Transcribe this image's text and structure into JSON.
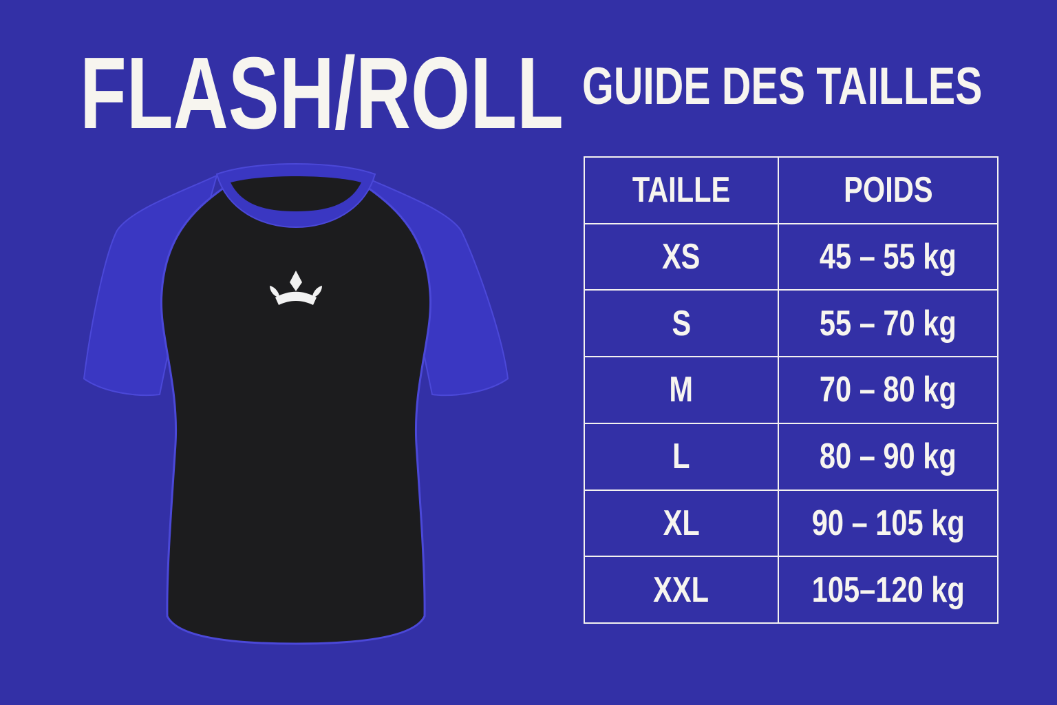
{
  "brand": "FLASH/ROLL",
  "title": "GUIDE DES TAILLES",
  "colors": {
    "background": "#3330a6",
    "sleeve": "#3a37c2",
    "body": "#1c1c1e",
    "text": "#f7f5ef"
  },
  "shirt": {
    "logo_icon": "crown-icon"
  },
  "table": {
    "headers": [
      "TAILLE",
      "POIDS"
    ],
    "rows": [
      {
        "size": "XS",
        "weight": "45 – 55 kg"
      },
      {
        "size": "S",
        "weight": "55 – 70 kg"
      },
      {
        "size": "M",
        "weight": "70 – 80 kg"
      },
      {
        "size": "L",
        "weight": "80 – 90 kg"
      },
      {
        "size": "XL",
        "weight": "90 – 105 kg"
      },
      {
        "size": "XXL",
        "weight": "105–120 kg"
      }
    ]
  }
}
